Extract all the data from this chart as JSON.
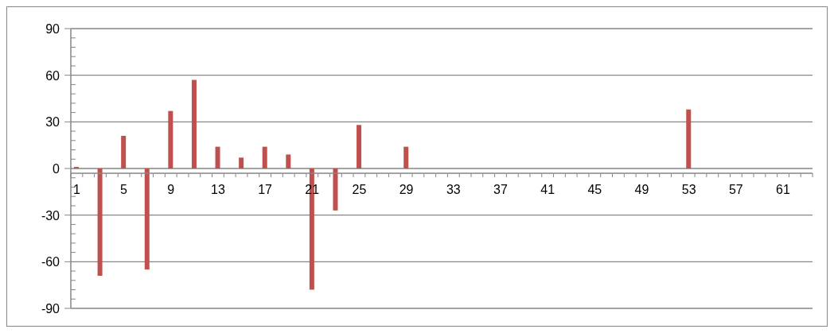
{
  "chart_data": {
    "type": "bar",
    "color": "#c0504d",
    "categories": [
      "1",
      null,
      null,
      null,
      "5",
      null,
      null,
      null,
      "9",
      null,
      null,
      null,
      "13",
      null,
      null,
      null,
      "17",
      null,
      null,
      null,
      "21",
      null,
      null,
      null,
      "25",
      null,
      null,
      null,
      "29",
      null,
      null,
      null,
      "33",
      null,
      null,
      null,
      "37",
      null,
      null,
      null,
      "41",
      null,
      null,
      null,
      "45",
      null,
      null,
      null,
      "49",
      null,
      null,
      null,
      "53",
      null,
      null,
      null,
      "57",
      null,
      null,
      null,
      "61",
      null,
      null
    ],
    "values": [
      1,
      0,
      -69,
      0,
      21,
      0,
      -65,
      0,
      37,
      0,
      57,
      0,
      14,
      0,
      7,
      0,
      14,
      0,
      9,
      0,
      -78,
      0,
      -27,
      0,
      28,
      0,
      0,
      0,
      14,
      0,
      0,
      0,
      0,
      0,
      0,
      0,
      0,
      0,
      0,
      0,
      0,
      0,
      0,
      0,
      0,
      0,
      0,
      0,
      0,
      0,
      0,
      0,
      38,
      0,
      0,
      0,
      0,
      0,
      0,
      0,
      0,
      0,
      0
    ],
    "ylim": [
      -90,
      90
    ],
    "yticks": [
      -90,
      {
        "value": -84,
        "label": null
      },
      {
        "value": -78,
        "label": null
      },
      {
        "value": -72,
        "label": null
      },
      {
        "value": -66,
        "label": null
      },
      -60,
      {
        "value": -54,
        "label": null
      },
      {
        "value": -48,
        "label": null
      },
      {
        "value": -42,
        "label": null
      },
      {
        "value": -36,
        "label": null
      },
      -30,
      {
        "value": -24,
        "label": null
      },
      {
        "value": -18,
        "label": null
      },
      {
        "value": -12,
        "label": null
      },
      {
        "value": -6,
        "label": null
      },
      0,
      {
        "value": 6,
        "label": null
      },
      {
        "value": 12,
        "label": null
      },
      {
        "value": 18,
        "label": null
      },
      {
        "value": 24,
        "label": null
      },
      30,
      {
        "value": 36,
        "label": null
      },
      {
        "value": 42,
        "label": null
      },
      {
        "value": 48,
        "label": null
      },
      {
        "value": 54,
        "label": null
      },
      60,
      {
        "value": 66,
        "label": null
      },
      {
        "value": 72,
        "label": null
      },
      {
        "value": 78,
        "label": null
      },
      {
        "value": 84,
        "label": null
      },
      90
    ],
    "grid": "y"
  }
}
